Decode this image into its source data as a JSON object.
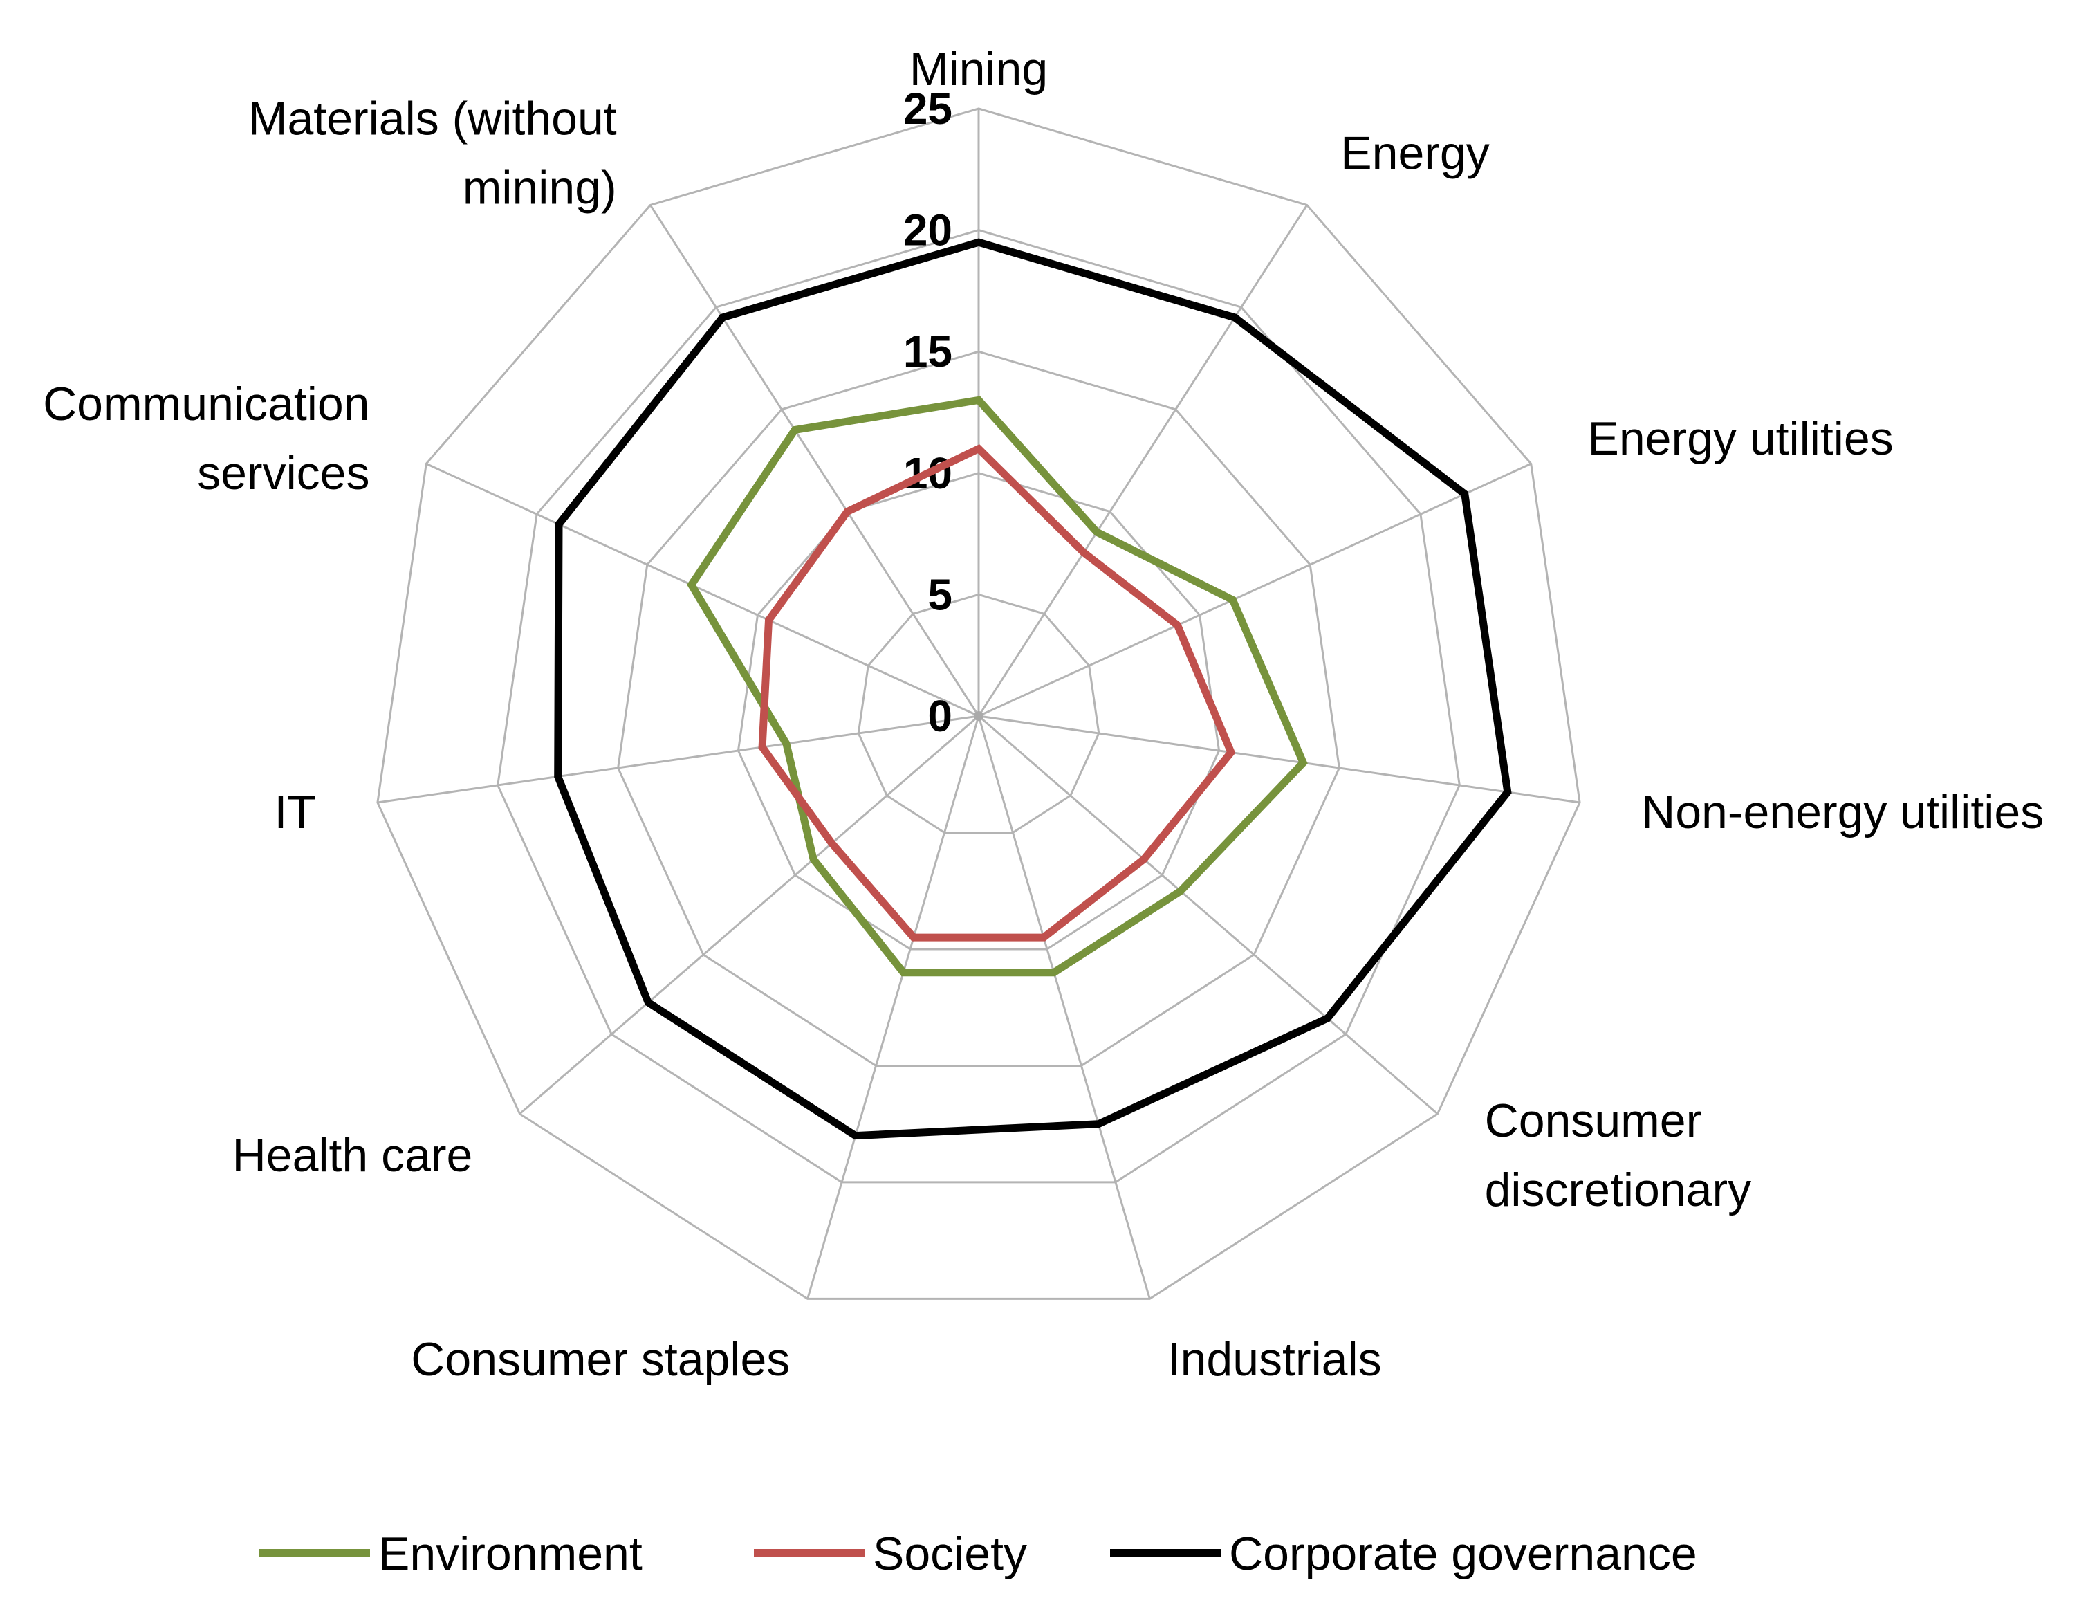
{
  "chart_data": {
    "type": "radar",
    "title": "",
    "categories": [
      "Mining",
      "Energy",
      "Energy utilities",
      "Non-energy utilities",
      "Consumer discretionary",
      "Industrials",
      "Consumer staples",
      "Health care",
      "IT",
      "Communication services",
      "Materials (without mining)"
    ],
    "category_label_lines": [
      [
        "Mining"
      ],
      [
        "Energy"
      ],
      [
        "Energy utilities"
      ],
      [
        "Non-energy utilities"
      ],
      [
        "Consumer",
        "discretionary"
      ],
      [
        "Industrials"
      ],
      [
        "Consumer staples"
      ],
      [
        "Health care"
      ],
      [
        "IT"
      ],
      [
        "Communication",
        "services"
      ],
      [
        "Materials (without",
        "mining)"
      ]
    ],
    "rlim": [
      0,
      25
    ],
    "ticks": [
      0,
      5,
      10,
      15,
      20,
      25
    ],
    "tick_labels": [
      "0",
      "5",
      "10",
      "15",
      "20",
      "25"
    ],
    "series": [
      {
        "name": "Environment",
        "color": "#77933c",
        "values": [
          13,
          9,
          11.5,
          13.5,
          11,
          11,
          11,
          9,
          8,
          13,
          14
        ]
      },
      {
        "name": "Society",
        "color": "#c0504d",
        "values": [
          11,
          8,
          9,
          10.5,
          9,
          9.5,
          9.5,
          8,
          9,
          9.5,
          10
        ]
      },
      {
        "name": "Corporate governance",
        "color": "#000000",
        "values": [
          19.5,
          19.5,
          22,
          22,
          19,
          17.5,
          18,
          18,
          17.5,
          19,
          19.5
        ]
      }
    ],
    "legend_position": "bottom"
  }
}
